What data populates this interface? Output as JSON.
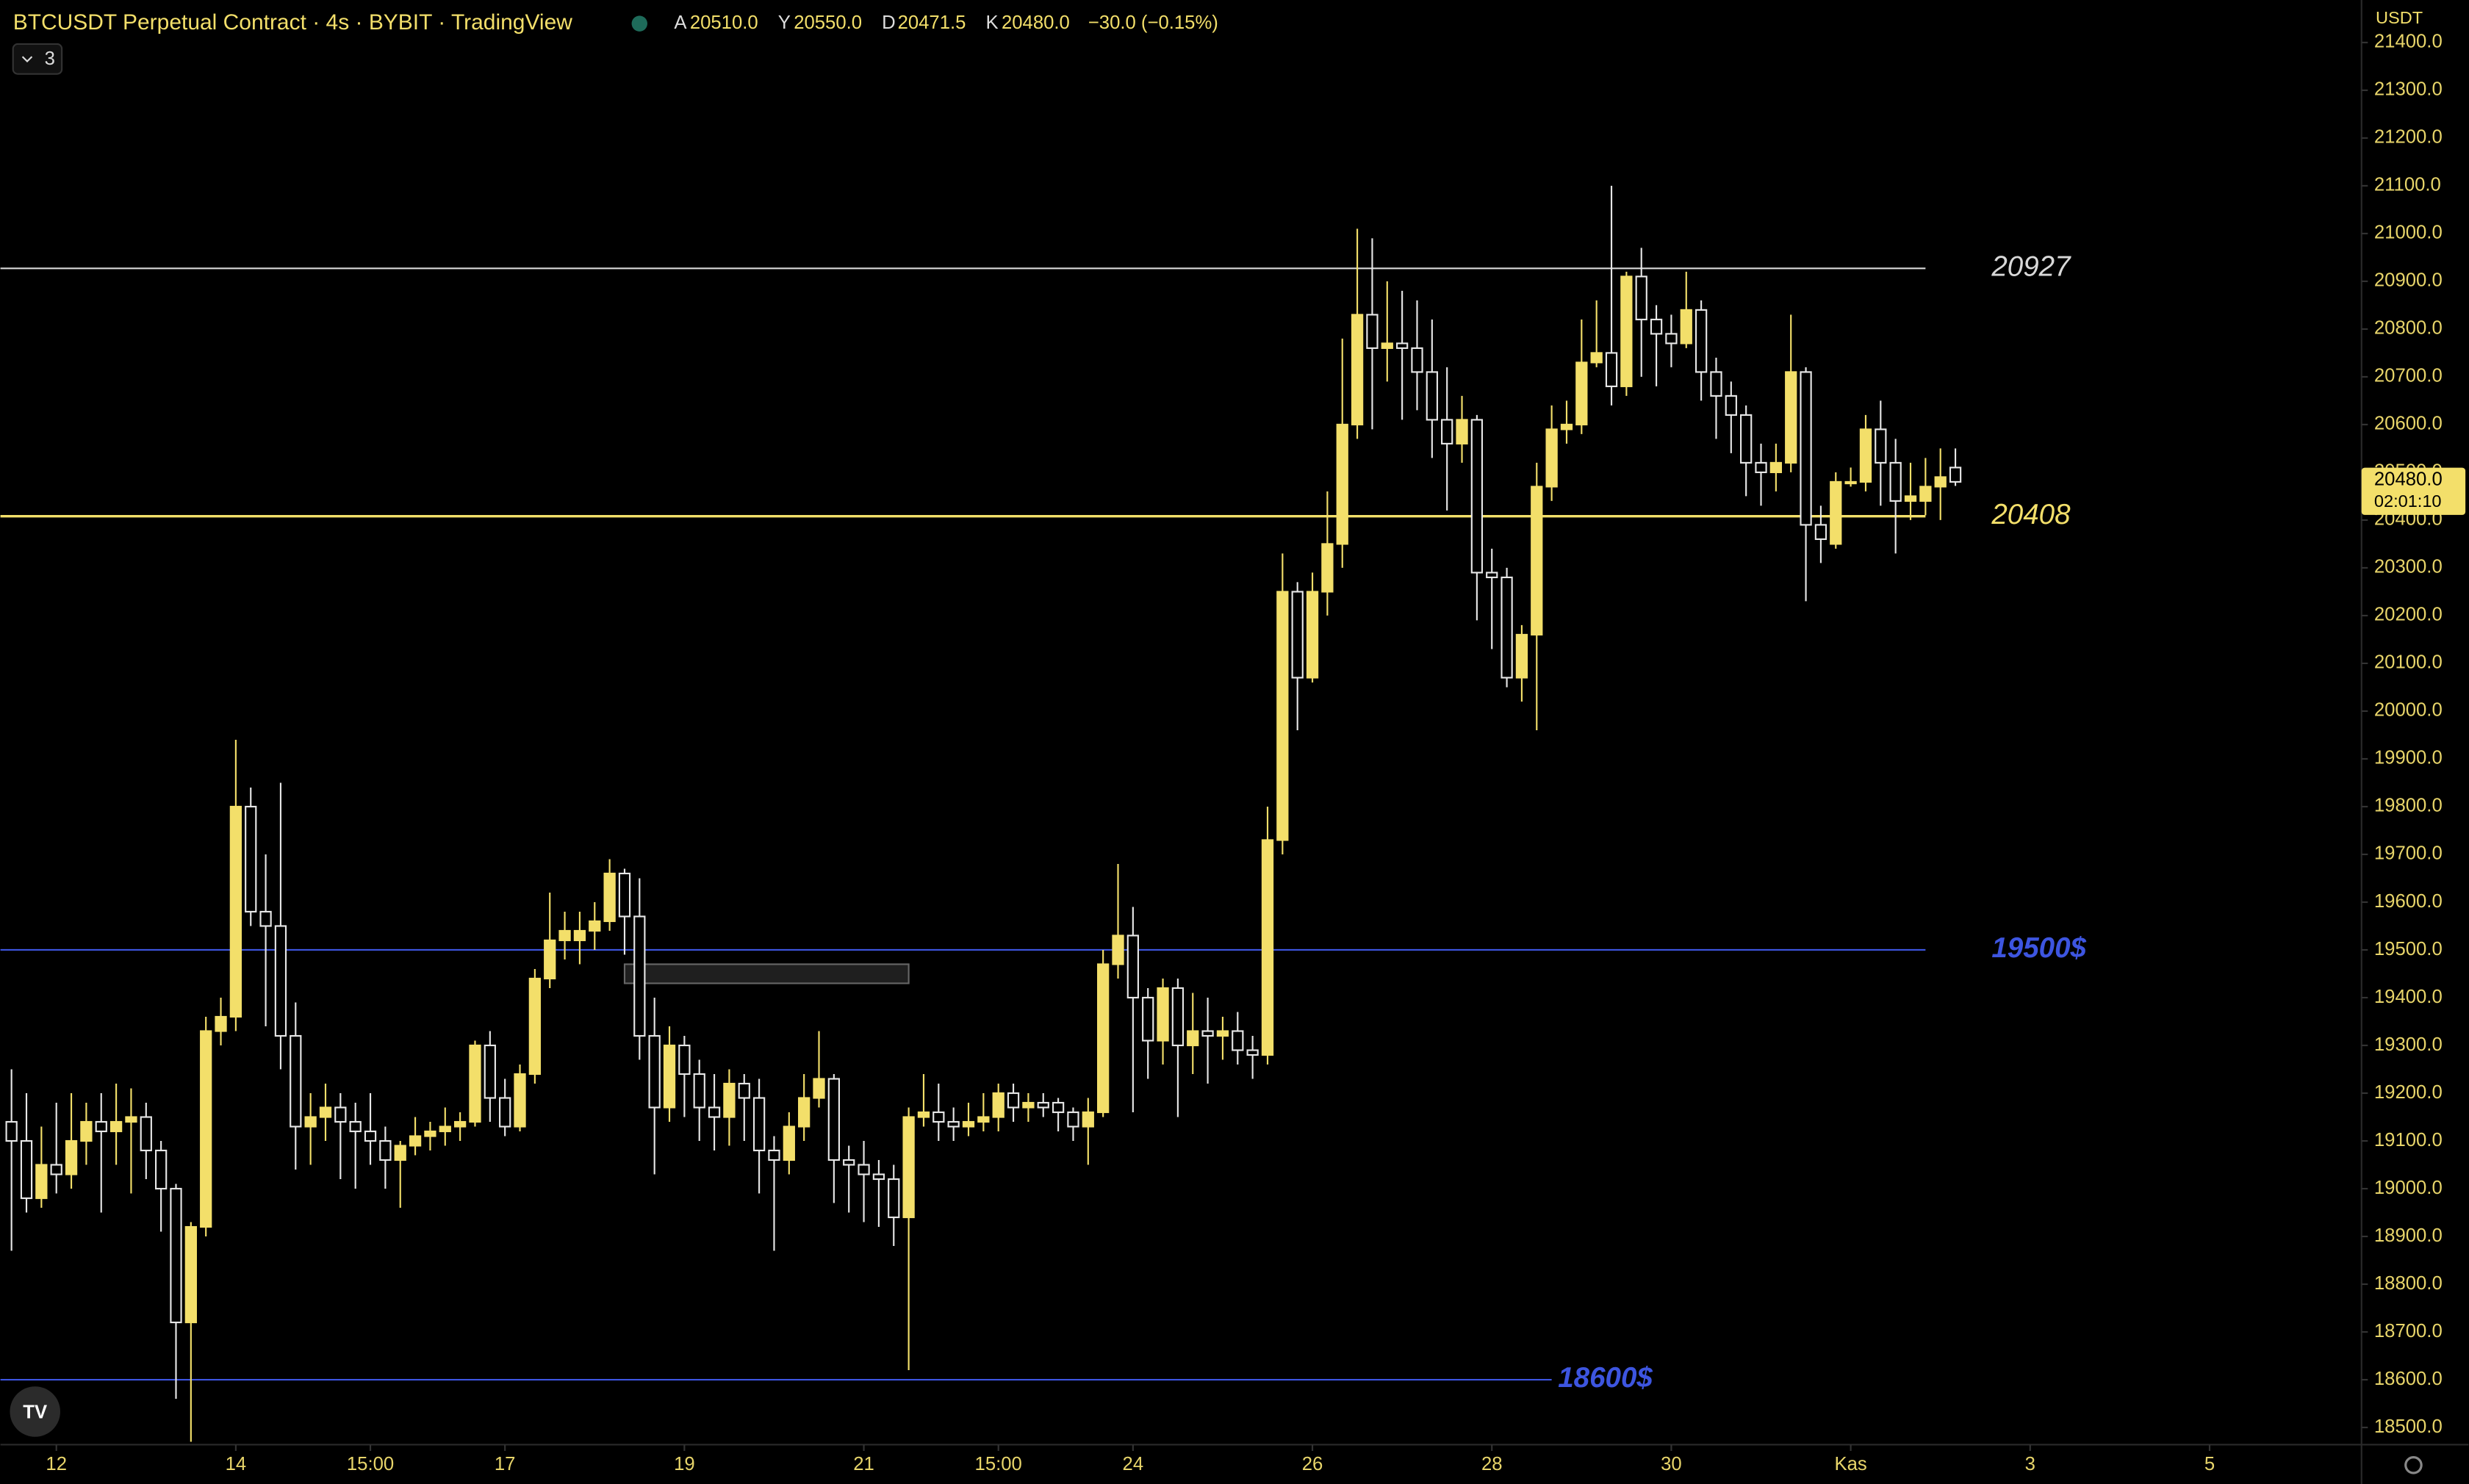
{
  "header": {
    "title": "BTCUSDT Perpetual Contract · 4s · BYBIT · TradingView",
    "ohlc": [
      {
        "key": "A",
        "text": "20510.0"
      },
      {
        "key": "Y",
        "text": "20550.0"
      },
      {
        "key": "D",
        "text": "20471.5"
      },
      {
        "key": "K",
        "text": "20480.0"
      }
    ],
    "change": "−30.0 (−0.15%)",
    "indicators": "3",
    "currency": "USDT"
  },
  "chart_data": {
    "type": "candlestick",
    "up_color": "#f3df6a",
    "down_color": "#e6e6e6",
    "open": [
      19140,
      19100,
      18980,
      19050,
      19030,
      19100,
      19140,
      19120,
      19140,
      19150,
      19080,
      19000,
      18720,
      18920,
      19330,
      19360,
      19800,
      19580,
      19550,
      19320,
      19130,
      19150,
      19170,
      19140,
      19120,
      19100,
      19060,
      19090,
      19110,
      19120,
      19130,
      19140,
      19300,
      19190,
      19130,
      19240,
      19440,
      19520,
      19520,
      19540,
      19560,
      19660,
      19570,
      19320,
      19170,
      19300,
      19240,
      19170,
      19150,
      19220,
      19190,
      19080,
      19060,
      19130,
      19190,
      19230,
      19060,
      19050,
      19030,
      19020,
      18940,
      19150,
      19160,
      19140,
      19130,
      19140,
      19150,
      19200,
      19170,
      19180,
      19180,
      19160,
      19130,
      19160,
      19470,
      19530,
      19400,
      19310,
      19420,
      19300,
      19330,
      19320,
      19330,
      19290,
      19280,
      19730,
      20250,
      20070,
      20250,
      20350,
      20600,
      20830,
      20760,
      20770,
      20760,
      20710,
      20610,
      20560,
      20610,
      20290,
      20280,
      20070,
      20160,
      20470,
      20590,
      20600,
      20730,
      20750,
      20680,
      20910,
      20820,
      20790,
      20770,
      20840,
      20710,
      20660,
      20620,
      20520,
      20500,
      20520,
      20710,
      20390,
      20350,
      20480,
      20480,
      20590,
      20520,
      20440,
      20440,
      20470,
      20510
    ],
    "close": [
      19100,
      18980,
      19050,
      19030,
      19100,
      19140,
      19120,
      19140,
      19150,
      19080,
      19000,
      18720,
      18920,
      19330,
      19360,
      19800,
      19580,
      19550,
      19320,
      19130,
      19150,
      19170,
      19140,
      19120,
      19100,
      19060,
      19090,
      19110,
      19120,
      19130,
      19140,
      19300,
      19190,
      19130,
      19240,
      19440,
      19520,
      19540,
      19540,
      19560,
      19660,
      19570,
      19320,
      19170,
      19300,
      19240,
      19170,
      19150,
      19220,
      19190,
      19080,
      19060,
      19130,
      19190,
      19230,
      19060,
      19050,
      19030,
      19020,
      18940,
      19150,
      19160,
      19140,
      19130,
      19140,
      19150,
      19200,
      19170,
      19180,
      19170,
      19160,
      19130,
      19160,
      19470,
      19530,
      19400,
      19310,
      19420,
      19300,
      19330,
      19320,
      19330,
      19290,
      19280,
      19730,
      20250,
      20070,
      20250,
      20350,
      20600,
      20830,
      20760,
      20770,
      20760,
      20710,
      20610,
      20560,
      20610,
      20290,
      20280,
      20070,
      20160,
      20470,
      20590,
      20600,
      20730,
      20750,
      20680,
      20910,
      20820,
      20790,
      20770,
      20840,
      20710,
      20660,
      20620,
      20520,
      20500,
      20520,
      20710,
      20390,
      20360,
      20480,
      20480,
      20590,
      20520,
      20440,
      20450,
      20470,
      20490,
      20480
    ],
    "high": [
      19250,
      19200,
      19130,
      19180,
      19200,
      19180,
      19200,
      19220,
      19210,
      19180,
      19100,
      19010,
      18930,
      19360,
      19400,
      19940,
      19840,
      19700,
      19850,
      19390,
      19200,
      19220,
      19200,
      19180,
      19200,
      19130,
      19100,
      19150,
      19140,
      19170,
      19160,
      19310,
      19330,
      19230,
      19260,
      19460,
      19620,
      19580,
      19580,
      19600,
      19690,
      19670,
      19650,
      19400,
      19340,
      19320,
      19270,
      19240,
      19250,
      19240,
      19230,
      19110,
      19160,
      19240,
      19330,
      19240,
      19090,
      19100,
      19060,
      19050,
      19170,
      19240,
      19220,
      19170,
      19180,
      19200,
      19220,
      19220,
      19200,
      19200,
      19190,
      19170,
      19190,
      19500,
      19680,
      19590,
      19420,
      19440,
      19440,
      19410,
      19400,
      19360,
      19370,
      19320,
      19800,
      20330,
      20270,
      20290,
      20460,
      20780,
      21010,
      20990,
      20900,
      20880,
      20860,
      20820,
      20720,
      20660,
      20620,
      20340,
      20300,
      20180,
      20520,
      20640,
      20650,
      20820,
      20860,
      21100,
      20920,
      20970,
      20850,
      20830,
      20920,
      20860,
      20740,
      20690,
      20640,
      20560,
      20560,
      20830,
      20720,
      20430,
      20500,
      20510,
      20620,
      20650,
      20570,
      20520,
      20530,
      20550,
      20550
    ],
    "low": [
      18870,
      18950,
      18960,
      18990,
      19000,
      19050,
      18950,
      19050,
      18990,
      19020,
      18910,
      18560,
      18470,
      18900,
      19300,
      19330,
      19550,
      19340,
      19250,
      19040,
      19050,
      19100,
      19020,
      19000,
      19050,
      19000,
      18960,
      19070,
      19080,
      19090,
      19100,
      19130,
      19140,
      19110,
      19120,
      19220,
      19420,
      19480,
      19470,
      19500,
      19540,
      19490,
      19270,
      19030,
      19140,
      19150,
      19100,
      19080,
      19090,
      19100,
      18990,
      18870,
      19030,
      19100,
      19170,
      18970,
      18950,
      18930,
      18920,
      18880,
      18620,
      19130,
      19100,
      19100,
      19110,
      19120,
      19120,
      19140,
      19140,
      19150,
      19120,
      19100,
      19050,
      19150,
      19440,
      19160,
      19230,
      19260,
      19150,
      19240,
      19220,
      19270,
      19260,
      19230,
      19260,
      19700,
      19960,
      20060,
      20200,
      20300,
      20570,
      20590,
      20690,
      20610,
      20630,
      20530,
      20420,
      20520,
      20190,
      20130,
      20050,
      20020,
      19960,
      20440,
      20560,
      20580,
      20720,
      20640,
      20660,
      20700,
      20680,
      20720,
      20760,
      20650,
      20570,
      20540,
      20450,
      20430,
      20460,
      20500,
      20230,
      20310,
      20340,
      20470,
      20460,
      20430,
      20330,
      20400,
      20410,
      20400,
      20471.5
    ],
    "xlim": [
      -0.74,
      157.16
    ],
    "ylim": [
      18464,
      21489
    ],
    "xticks": [
      {
        "value": 3,
        "label": "12"
      },
      {
        "value": 15,
        "label": "14"
      },
      {
        "value": 24,
        "label": "15:00"
      },
      {
        "value": 33,
        "label": "17"
      },
      {
        "value": 45,
        "label": "19"
      },
      {
        "value": 57,
        "label": "21"
      },
      {
        "value": 66,
        "label": "15:00"
      },
      {
        "value": 75,
        "label": "24"
      },
      {
        "value": 87,
        "label": "26"
      },
      {
        "value": 99,
        "label": "28"
      },
      {
        "value": 111,
        "label": "30"
      },
      {
        "value": 123,
        "label": "Kas"
      },
      {
        "value": 135,
        "label": "3"
      },
      {
        "value": 147,
        "label": "5"
      }
    ],
    "yticks": [
      {
        "value": 18500,
        "label": "18500.0"
      },
      {
        "value": 18600,
        "label": "18600.0"
      },
      {
        "value": 18700,
        "label": "18700.0"
      },
      {
        "value": 18800,
        "label": "18800.0"
      },
      {
        "value": 18900,
        "label": "18900.0"
      },
      {
        "value": 19000,
        "label": "19000.0"
      },
      {
        "value": 19100,
        "label": "19100.0"
      },
      {
        "value": 19200,
        "label": "19200.0"
      },
      {
        "value": 19300,
        "label": "19300.0"
      },
      {
        "value": 19400,
        "label": "19400.0"
      },
      {
        "value": 19500,
        "label": "19500.0"
      },
      {
        "value": 19600,
        "label": "19600.0"
      },
      {
        "value": 19700,
        "label": "19700.0"
      },
      {
        "value": 19800,
        "label": "19800.0"
      },
      {
        "value": 19900,
        "label": "19900.0"
      },
      {
        "value": 20000,
        "label": "20000.0"
      },
      {
        "value": 20100,
        "label": "20100.0"
      },
      {
        "value": 20200,
        "label": "20200.0"
      },
      {
        "value": 20300,
        "label": "20300.0"
      },
      {
        "value": 20400,
        "label": "20400.0"
      },
      {
        "value": 20500,
        "label": "20500.0"
      },
      {
        "value": 20600,
        "label": "20600.0"
      },
      {
        "value": 20700,
        "label": "20700.0"
      },
      {
        "value": 20800,
        "label": "20800.0"
      },
      {
        "value": 20900,
        "label": "20900.0"
      },
      {
        "value": 21000,
        "label": "21000.0"
      },
      {
        "value": 21100,
        "label": "21100.0"
      },
      {
        "value": 21200,
        "label": "21200.0"
      },
      {
        "value": 21300,
        "label": "21300.0"
      },
      {
        "value": 21400,
        "label": "21400.0"
      }
    ],
    "levels": [
      {
        "value": 20927,
        "label": "20927",
        "color": "#d8d8d8",
        "x_end": 128
      },
      {
        "value": 20408,
        "label": "20408",
        "color": "#f3df6a",
        "x_end": 128
      },
      {
        "value": 19500,
        "label": "19500$",
        "color": "#3d55e0",
        "x_end": 128
      },
      {
        "value": 18600,
        "label": "18600$",
        "color": "#3d55e0",
        "x_end": 103
      }
    ],
    "zone": {
      "x": [
        41,
        60
      ],
      "y": [
        19430,
        19470
      ]
    },
    "price_tag": {
      "value": 20480,
      "label": "20480.0",
      "countdown": "02:01:10"
    }
  }
}
